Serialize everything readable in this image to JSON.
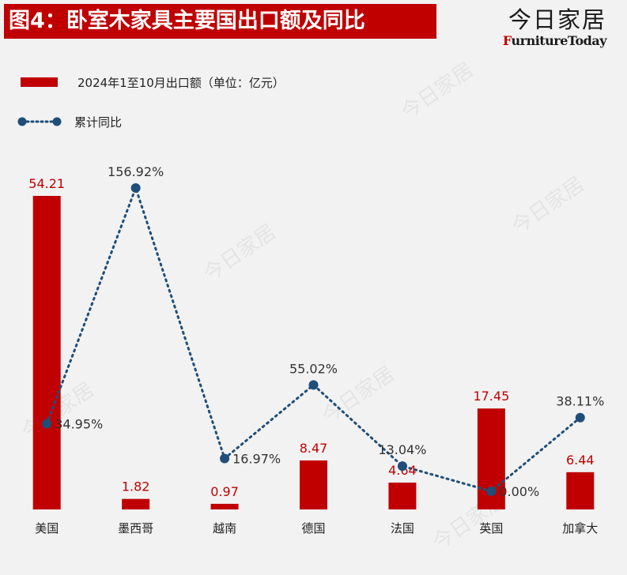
{
  "header": {
    "title": "图4：卧室木家具主要国出口额及同比",
    "brand_cn": "今日家居",
    "brand_en_first": "F",
    "brand_en_rest": "urnitureToday"
  },
  "legend": {
    "bar_label": "2024年1至10月出口额（单位：亿元）",
    "line_label": "累计同比"
  },
  "colors": {
    "bar": "#c00000",
    "line": "#1f4e79",
    "bar_label": "#c00000",
    "line_label": "#333333"
  },
  "chart_data": {
    "type": "bar",
    "categories": [
      "美国",
      "墨西哥",
      "越南",
      "德国",
      "法国",
      "英国",
      "加拿大"
    ],
    "series": [
      {
        "name": "2024年1至10月出口额（单位：亿元）",
        "type": "bar",
        "values": [
          54.21,
          1.82,
          0.97,
          8.47,
          4.64,
          17.45,
          6.44
        ],
        "labels": [
          "54.21",
          "1.82",
          "0.97",
          "8.47",
          "4.64",
          "17.45",
          "6.44"
        ]
      },
      {
        "name": "累计同比",
        "type": "line",
        "values": [
          34.95,
          156.92,
          16.97,
          55.02,
          13.04,
          0.0,
          38.11
        ],
        "labels": [
          "34.95%",
          "156.92%",
          "16.97%",
          "55.02%",
          "13.04%",
          "0.00%",
          "38.11%"
        ]
      }
    ],
    "line_style": "dotted with circle markers",
    "grid": false,
    "legend_position": "top-left"
  }
}
